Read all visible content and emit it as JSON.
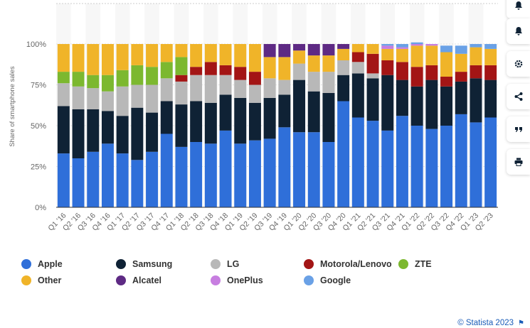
{
  "chart_data": {
    "type": "bar",
    "stacked": true,
    "ylabel": "Share of smartphone sales",
    "xlabel": "",
    "ylim": [
      0,
      100
    ],
    "y_ticks": [
      "0%",
      "25%",
      "50%",
      "75%",
      "100%"
    ],
    "grid": true,
    "legend_position": "bottom",
    "categories": [
      "Q1 '16",
      "Q2 '16",
      "Q3 '16",
      "Q4 '16",
      "Q1 '17",
      "Q2 '17",
      "Q3 '17",
      "Q4 '17",
      "Q1 '18",
      "Q2 '18",
      "Q3 '18",
      "Q4 '18",
      "Q1 '19",
      "Q2 '19",
      "Q3 '19",
      "Q4 '19",
      "Q1 '20",
      "Q2 '20",
      "Q3 '20",
      "Q4 '20",
      "Q1 '21",
      "Q2 '21",
      "Q3 '21",
      "Q4 '21",
      "Q1 '22",
      "Q2 '22",
      "Q3 '22",
      "Q4 '22",
      "Q1 '23",
      "Q2 '23"
    ],
    "series": [
      {
        "name": "Apple",
        "color": "#2f6fd9",
        "values": [
          33,
          30,
          34,
          39,
          33,
          29,
          34,
          45,
          37,
          40,
          39,
          47,
          39,
          41,
          42,
          49,
          46,
          46,
          40,
          65,
          55,
          53,
          47,
          56,
          50,
          48,
          50,
          57,
          52,
          55
        ]
      },
      {
        "name": "Samsung",
        "color": "#0f2235",
        "values": [
          29,
          30,
          26,
          20,
          23,
          32,
          24,
          20,
          26,
          25,
          25,
          22,
          28,
          23,
          25,
          20,
          32,
          25,
          30,
          16,
          27,
          26,
          34,
          22,
          24,
          30,
          24,
          20,
          27,
          23
        ]
      },
      {
        "name": "LG",
        "color": "#b8b8b8",
        "values": [
          14,
          14,
          13,
          12,
          18,
          14,
          17,
          14,
          14,
          16,
          17,
          12,
          11,
          11,
          12,
          9,
          10,
          12,
          13,
          9,
          7,
          3,
          0,
          0,
          0,
          0,
          0,
          0,
          0,
          0
        ]
      },
      {
        "name": "Motorola/Lenovo",
        "color": "#a31515",
        "values": [
          0,
          0,
          0,
          0,
          0,
          0,
          0,
          0,
          4,
          5,
          8,
          6,
          8,
          8,
          0,
          0,
          0,
          0,
          0,
          0,
          6,
          12,
          9,
          11,
          12,
          9,
          6,
          6,
          8,
          9
        ]
      },
      {
        "name": "ZTE",
        "color": "#7cb82f",
        "values": [
          7,
          9,
          8,
          10,
          10,
          12,
          11,
          10,
          11,
          0,
          0,
          0,
          0,
          0,
          0,
          0,
          0,
          0,
          0,
          0,
          0,
          0,
          0,
          0,
          0,
          0,
          0,
          0,
          0,
          0
        ]
      },
      {
        "name": "Other",
        "color": "#f0b429",
        "values": [
          17,
          17,
          19,
          19,
          16,
          13,
          14,
          11,
          8,
          14,
          11,
          13,
          14,
          17,
          13,
          14,
          8,
          10,
          10,
          7,
          5,
          6,
          7,
          8,
          13,
          12,
          15,
          11,
          11,
          10
        ]
      },
      {
        "name": "Alcatel",
        "color": "#5e2a84",
        "values": [
          0,
          0,
          0,
          0,
          0,
          0,
          0,
          0,
          0,
          0,
          0,
          0,
          0,
          0,
          8,
          8,
          4,
          7,
          7,
          3,
          0,
          0,
          0,
          0,
          0,
          0,
          0,
          0,
          0,
          0
        ]
      },
      {
        "name": "OnePlus",
        "color": "#c77ee0",
        "values": [
          0,
          0,
          0,
          0,
          0,
          0,
          0,
          0,
          0,
          0,
          0,
          0,
          0,
          0,
          0,
          0,
          0,
          0,
          0,
          0,
          0,
          0,
          2,
          1,
          1,
          1,
          0,
          0,
          0,
          0
        ]
      },
      {
        "name": "Google",
        "color": "#6aa1e6",
        "values": [
          0,
          0,
          0,
          0,
          0,
          0,
          0,
          0,
          0,
          0,
          0,
          0,
          0,
          0,
          0,
          0,
          0,
          0,
          0,
          0,
          0,
          0,
          1,
          2,
          1,
          0,
          4,
          5,
          2,
          3
        ]
      }
    ]
  },
  "side_buttons": [
    {
      "name": "notification-bell-icon"
    },
    {
      "name": "settings-gear-icon"
    },
    {
      "name": "share-icon"
    },
    {
      "name": "cite-quote-icon"
    },
    {
      "name": "print-icon"
    }
  ],
  "credit": {
    "text": "© Statista 2023"
  }
}
